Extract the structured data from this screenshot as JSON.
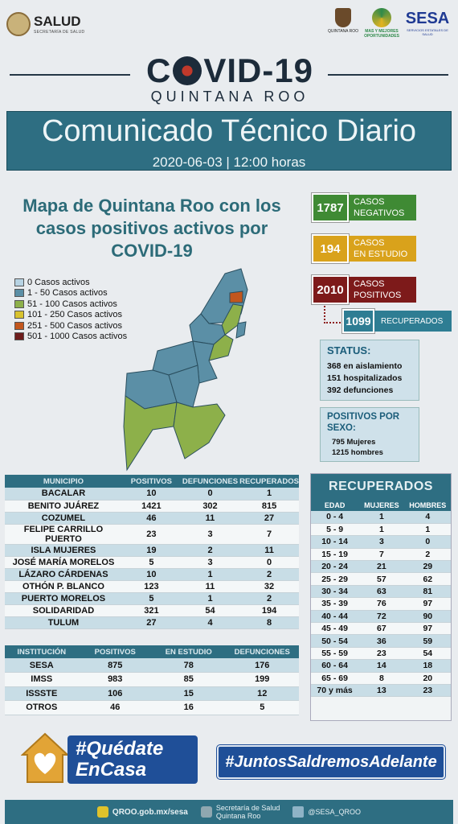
{
  "header": {
    "salud_name": "SALUD",
    "salud_sub": "SECRETARÍA DE SALUD",
    "qroo_text": "QUINTANA ROO",
    "mujeres_text": "MAS Y MEJORES OPORTUNIDADES",
    "sesa_name": "SESA",
    "sesa_sub": "SERVICIOS ESTATALES DE SALUD"
  },
  "title": {
    "covid_a": "C",
    "covid_b": "VID-19",
    "subtitle": "QUINTANA ROO"
  },
  "banner": {
    "title": "Comunicado Técnico Diario",
    "date": "2020-06-03 | 12:00 horas"
  },
  "map": {
    "heading": "Mapa de Quintana Roo con los casos positivos activos por COVID-19",
    "legend": [
      {
        "label": "0 Casos activos",
        "color": "#b7d3e3"
      },
      {
        "label": "1 - 50 Casos activos",
        "color": "#5b8fa6"
      },
      {
        "label": "51 - 100 Casos activos",
        "color": "#8db04a"
      },
      {
        "label": "101 - 250 Casos activos",
        "color": "#d8c22e"
      },
      {
        "label": "251 - 500 Casos activos",
        "color": "#c2561d"
      },
      {
        "label": "501 - 1000 Casos activos",
        "color": "#6e1d1d"
      }
    ]
  },
  "stats": {
    "negativos": {
      "value": "1787",
      "l1": "CASOS",
      "l2": "NEGATIVOS",
      "color": "#3f8a34"
    },
    "estudio": {
      "value": "194",
      "l1": "CASOS",
      "l2": "EN ESTUDIO",
      "color": "#d9a21b"
    },
    "positivos": {
      "value": "2010",
      "l1": "CASOS",
      "l2": "POSITIVOS",
      "color": "#7d1a1a"
    },
    "recuperados": {
      "value": "1099",
      "label": "RECUPERADOS"
    }
  },
  "status": {
    "title": "STATUS:",
    "lines": [
      "368 en aislamiento",
      "151 hospitalizados",
      "392 defunciones"
    ]
  },
  "sexo": {
    "title": "POSITIVOS POR SEXO:",
    "lines": [
      "795 Mujeres",
      "1215 hombres"
    ]
  },
  "municipios": {
    "headers": [
      "MUNICIPIO",
      "POSITIVOS",
      "DEFUNCIONES",
      "RECUPERADOS"
    ],
    "rows": [
      [
        "BACALAR",
        "10",
        "0",
        "1"
      ],
      [
        "BENITO JUÁREZ",
        "1421",
        "302",
        "815"
      ],
      [
        "COZUMEL",
        "46",
        "11",
        "27"
      ],
      [
        "FELIPE CARRILLO PUERTO",
        "23",
        "3",
        "7"
      ],
      [
        "ISLA MUJERES",
        "19",
        "2",
        "11"
      ],
      [
        "JOSÉ MARÍA MORELOS",
        "5",
        "3",
        "0"
      ],
      [
        "LÁZARO CÁRDENAS",
        "10",
        "1",
        "2"
      ],
      [
        "OTHÓN P. BLANCO",
        "123",
        "11",
        "32"
      ],
      [
        "PUERTO MORELOS",
        "5",
        "1",
        "2"
      ],
      [
        "SOLIDARIDAD",
        "321",
        "54",
        "194"
      ],
      [
        "TULUM",
        "27",
        "4",
        "8"
      ]
    ]
  },
  "instituciones": {
    "headers": [
      "INSTITUCIÓN",
      "POSITIVOS",
      "EN ESTUDIO",
      "DEFUNCIONES"
    ],
    "rows": [
      [
        "SESA",
        "875",
        "78",
        "176"
      ],
      [
        "IMSS",
        "983",
        "85",
        "199"
      ],
      [
        "ISSSTE",
        "106",
        "15",
        "12"
      ],
      [
        "OTROS",
        "46",
        "16",
        "5"
      ]
    ]
  },
  "recuperados_edad": {
    "title": "RECUPERADOS",
    "headers": [
      "EDAD",
      "MUJERES",
      "HOMBRES"
    ],
    "rows": [
      [
        "0 - 4",
        "1",
        "4"
      ],
      [
        "5 - 9",
        "1",
        "1"
      ],
      [
        "10 - 14",
        "3",
        "0"
      ],
      [
        "15 - 19",
        "7",
        "2"
      ],
      [
        "20 - 24",
        "21",
        "29"
      ],
      [
        "25 - 29",
        "57",
        "62"
      ],
      [
        "30 - 34",
        "63",
        "81"
      ],
      [
        "35 - 39",
        "76",
        "97"
      ],
      [
        "40 - 44",
        "72",
        "90"
      ],
      [
        "45 - 49",
        "67",
        "97"
      ],
      [
        "50 - 54",
        "36",
        "59"
      ],
      [
        "55 - 59",
        "23",
        "54"
      ],
      [
        "60 - 64",
        "14",
        "18"
      ],
      [
        "65 - 69",
        "8",
        "20"
      ],
      [
        "70 y más",
        "13",
        "23"
      ]
    ]
  },
  "badges": {
    "quedate_l1": "#Quédate",
    "quedate_l2": "EnCasa",
    "juntos": "#JuntosSaldremosAdelante"
  },
  "footer": {
    "site": "QROO.gob.mx/sesa",
    "secretaria_l1": "Secretaría de Salud",
    "secretaria_l2": "Quintana Roo",
    "twitter": "@SESA_QROO"
  }
}
